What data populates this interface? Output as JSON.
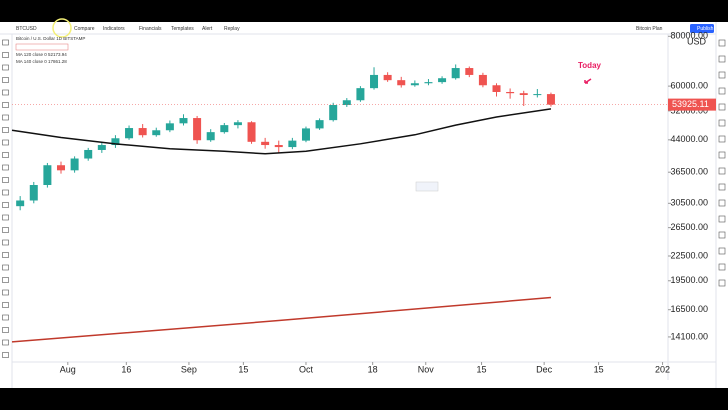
{
  "toolbar": [
    "BTCUSD",
    "Compare",
    "Indicators",
    "Financials",
    "Templates",
    "Alert",
    "Replay",
    "Bitcoin Plan",
    "Publish"
  ],
  "legend": [
    "Bitcoin / U.S. Dollar  1D  BITSTAMP",
    "MA 120 close 0  52173.94",
    "MA 140 close 0  17861.28"
  ],
  "chart_data": {
    "type": "candlestick",
    "currency": "USD",
    "annotation": "Today",
    "log_scale": true,
    "up_color": "#26a69a",
    "down_color": "#ef5350",
    "ylim": [
      12200,
      80600
    ],
    "yticks": [
      {
        "value": 80000,
        "label": "80000.00"
      },
      {
        "value": 60000,
        "label": "60000.00"
      },
      {
        "value": 52000,
        "label": "52000.00"
      },
      {
        "value": 44000,
        "label": "44000.00"
      },
      {
        "value": 36500,
        "label": "36500.00"
      },
      {
        "value": 30500,
        "label": "30500.00"
      },
      {
        "value": 26500,
        "label": "26500.00"
      },
      {
        "value": 22500,
        "label": "22500.00"
      },
      {
        "value": 19500,
        "label": "19500.00"
      },
      {
        "value": 16500,
        "label": "16500.00"
      },
      {
        "value": 14100,
        "label": "14100.00"
      }
    ],
    "xlim": [
      -0.6,
      47.6
    ],
    "xticks": [
      {
        "value": 3.5,
        "label": "Aug"
      },
      {
        "value": 7.8,
        "label": "16"
      },
      {
        "value": 12.4,
        "label": "Sep"
      },
      {
        "value": 16.4,
        "label": "15"
      },
      {
        "value": 21,
        "label": "Oct"
      },
      {
        "value": 25.9,
        "label": "18"
      },
      {
        "value": 29.8,
        "label": "Nov"
      },
      {
        "value": 33.9,
        "label": "15"
      },
      {
        "value": 38.5,
        "label": "Dec"
      },
      {
        "value": 42.5,
        "label": "15"
      },
      {
        "value": 47.2,
        "label": "202"
      }
    ],
    "candles": [
      [
        30000,
        31800,
        29300,
        31000
      ],
      [
        31000,
        34500,
        30500,
        33900
      ],
      [
        33900,
        38500,
        33400,
        38000
      ],
      [
        38000,
        38800,
        36200,
        36900
      ],
      [
        36900,
        40000,
        36400,
        39500
      ],
      [
        39500,
        42000,
        39000,
        41500
      ],
      [
        41500,
        43500,
        40800,
        42700
      ],
      [
        42700,
        45200,
        42000,
        44400
      ],
      [
        44400,
        47800,
        44000,
        47100
      ],
      [
        47100,
        48200,
        44600,
        45200
      ],
      [
        45200,
        47200,
        44800,
        46500
      ],
      [
        46500,
        49200,
        46000,
        48400
      ],
      [
        48400,
        51000,
        47800,
        49900
      ],
      [
        49900,
        50500,
        43000,
        43900
      ],
      [
        43900,
        46800,
        43500,
        46000
      ],
      [
        46000,
        48500,
        45600,
        47900
      ],
      [
        47900,
        49300,
        47000,
        48700
      ],
      [
        48700,
        49000,
        43000,
        43500
      ],
      [
        43500,
        44500,
        41800,
        42700
      ],
      [
        42700,
        43800,
        40800,
        42200
      ],
      [
        42200,
        44500,
        41700,
        43800
      ],
      [
        43800,
        47500,
        43400,
        47000
      ],
      [
        47000,
        49800,
        46600,
        49300
      ],
      [
        49300,
        54500,
        48900,
        53800
      ],
      [
        53800,
        56000,
        53200,
        55300
      ],
      [
        55300,
        60000,
        54800,
        59300
      ],
      [
        59300,
        66900,
        58800,
        64000
      ],
      [
        64000,
        65000,
        61500,
        62100
      ],
      [
        62100,
        63300,
        59500,
        60300
      ],
      [
        60300,
        62000,
        59800,
        61000
      ],
      [
        61000,
        62500,
        60300,
        61400
      ],
      [
        61400,
        63500,
        60800,
        62800
      ],
      [
        62800,
        68000,
        62300,
        66600
      ],
      [
        66600,
        67200,
        63200,
        64000
      ],
      [
        64000,
        64800,
        59600,
        60300
      ],
      [
        60300,
        61000,
        56500,
        58000
      ],
      [
        58000,
        59200,
        55800,
        57600
      ],
      [
        57600,
        58400,
        53500,
        57000
      ],
      [
        57000,
        59000,
        56200,
        57300
      ],
      [
        57300,
        57800,
        53300,
        53925.11
      ]
    ],
    "series": [
      {
        "color": "#111111",
        "x": [
          -0.6,
          3,
          7,
          11,
          15,
          18,
          21,
          25,
          29,
          32,
          35,
          39
        ],
        "values": [
          46500,
          44600,
          43000,
          41800,
          41200,
          40600,
          41200,
          43000,
          45300,
          47900,
          50200,
          52600
        ]
      },
      {
        "color": "#c0392b",
        "x": [
          -0.6,
          19,
          39
        ],
        "values": [
          13700,
          15500,
          17700
        ]
      }
    ]
  }
}
